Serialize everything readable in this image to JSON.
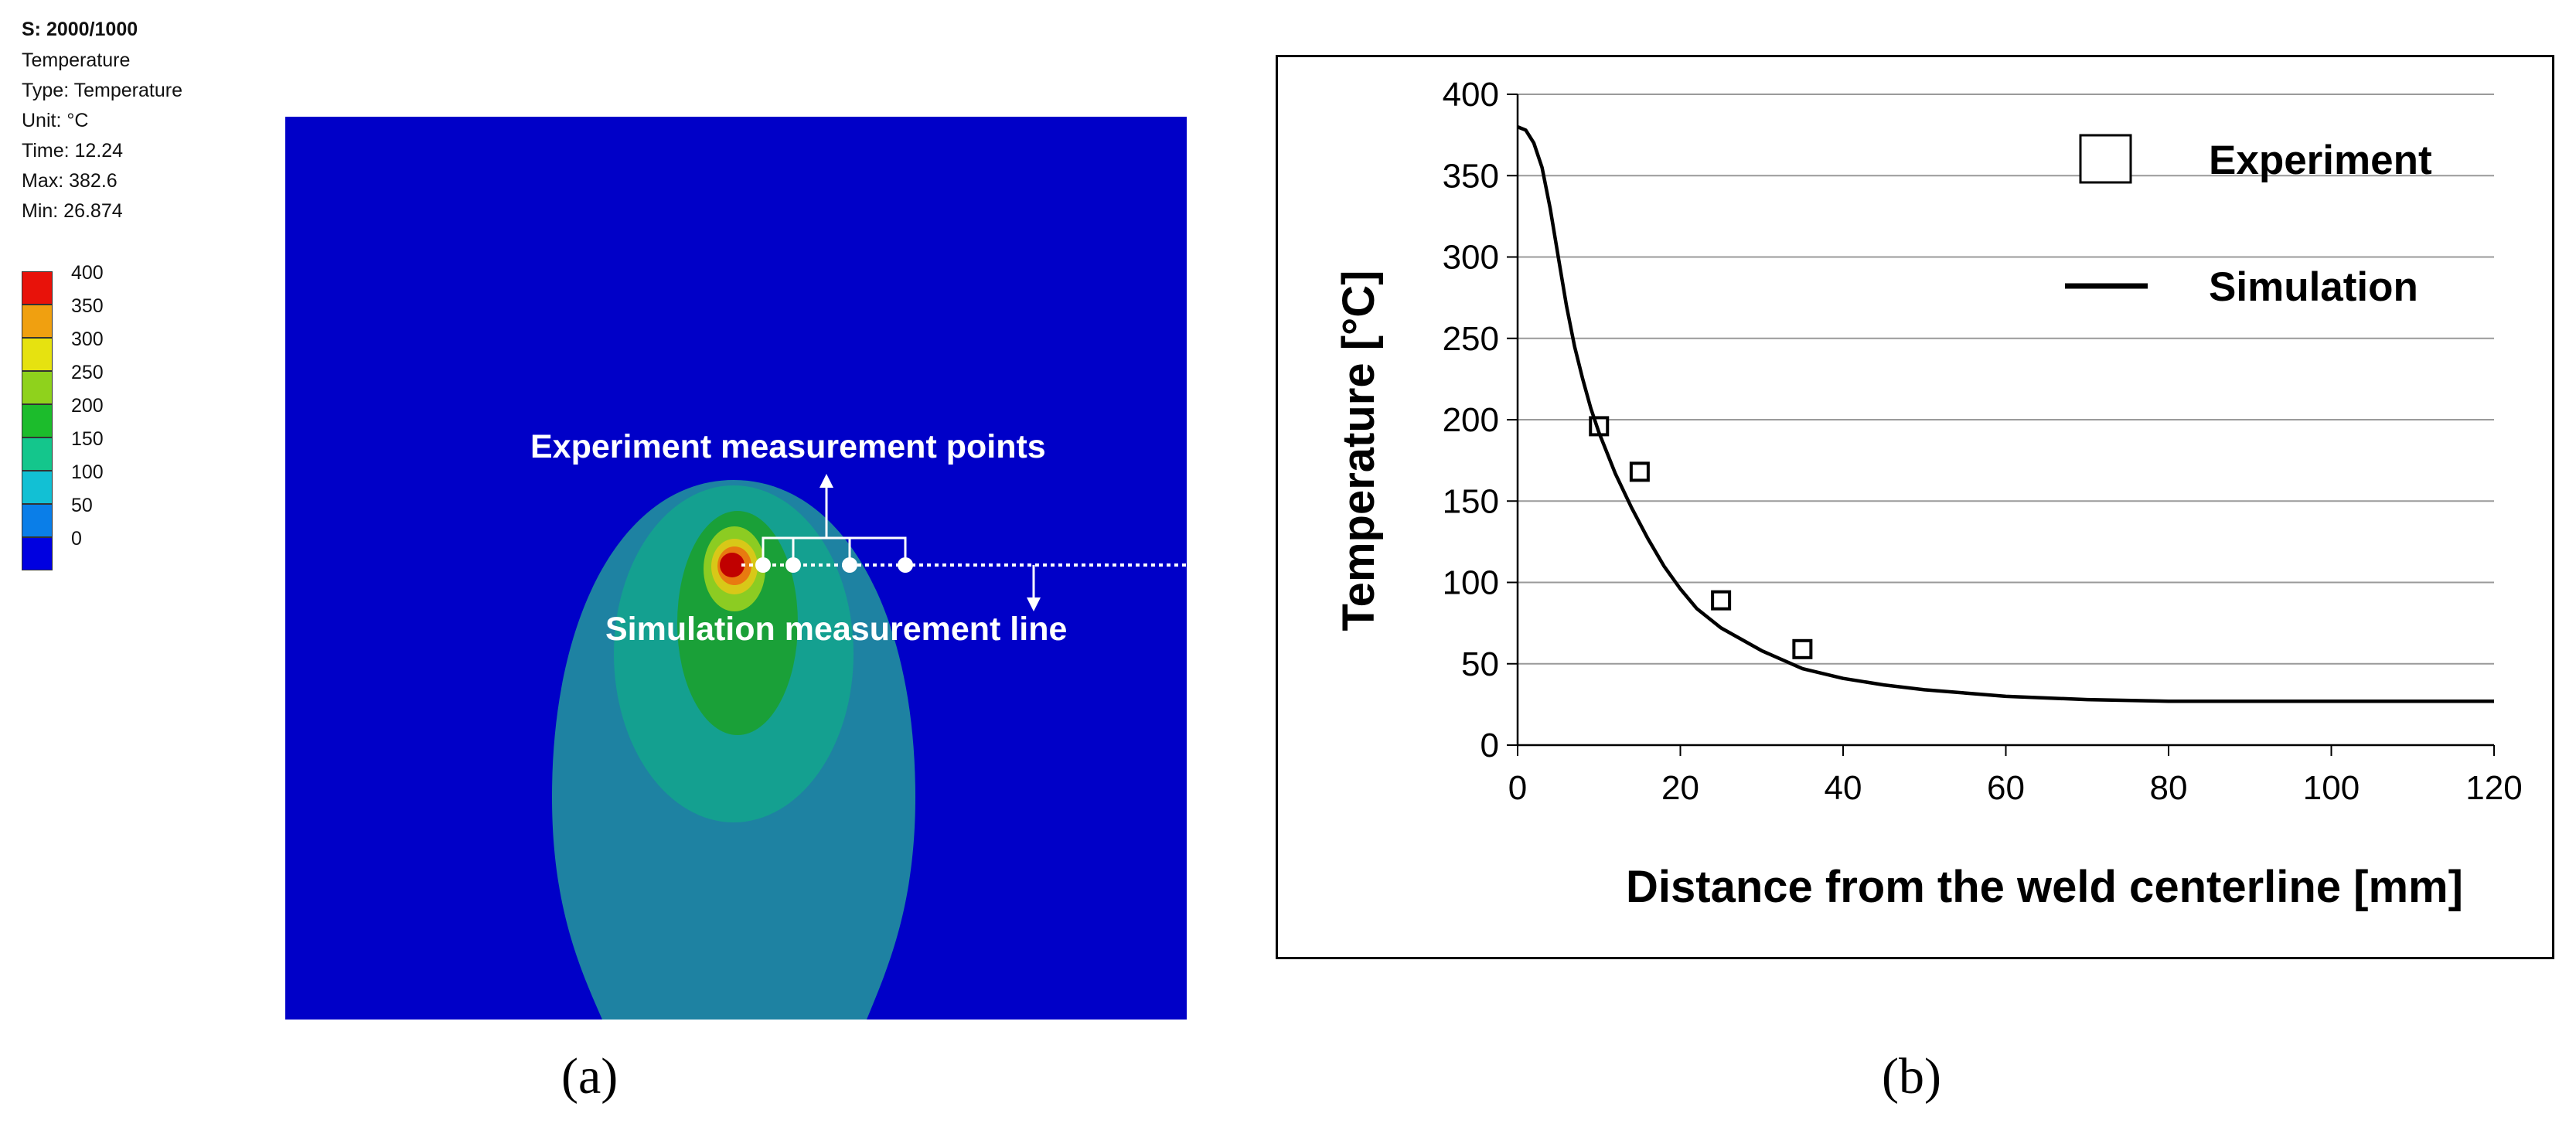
{
  "panel_a": {
    "info": {
      "step": "S: 2000/1000",
      "name": "Temperature",
      "type": "Type: Temperature",
      "unit": "Unit: °C",
      "time": "Time: 12.24",
      "max": "Max: 382.6",
      "min": "Min: 26.874"
    },
    "legend": {
      "labels": [
        "400",
        "350",
        "300",
        "250",
        "200",
        "150",
        "100",
        "50",
        "0"
      ],
      "colors": [
        "#e8120a",
        "#f0a010",
        "#e6e210",
        "#8fd21c",
        "#1cbc2c",
        "#14c68c",
        "#12c0d4",
        "#0a7ee8",
        "#0000e0"
      ]
    },
    "annotation_points": "Experiment measurement points",
    "annotation_line": "Simulation measurement line",
    "caption": "(a)",
    "colors": {
      "background": "#0000c8",
      "outer": "#1e82a2",
      "mid": "#14a090",
      "inner": "#1aa038",
      "hot": "#c00000"
    }
  },
  "panel_b": {
    "caption": "(b)"
  },
  "chart_data": {
    "type": "scatter",
    "xlabel": "Distance from the weld centerline [mm]",
    "ylabel": "Temperature [°C]",
    "xlim": [
      0,
      120
    ],
    "ylim": [
      0,
      400
    ],
    "xticks": [
      "0",
      "20",
      "40",
      "60",
      "80",
      "100",
      "120"
    ],
    "yticks": [
      "0",
      "50",
      "100",
      "150",
      "200",
      "250",
      "300",
      "350",
      "400"
    ],
    "grid": "horizontal",
    "legend_position": "top-right",
    "series": [
      {
        "name": "Experiment",
        "marker": "square",
        "x": [
          10,
          15,
          25,
          35
        ],
        "y": [
          196,
          168,
          89,
          59
        ]
      },
      {
        "name": "Simulation",
        "style": "line",
        "x": [
          0,
          1,
          2,
          3,
          4,
          5,
          6,
          7,
          8,
          9,
          10,
          12,
          14,
          16,
          18,
          20,
          22,
          25,
          30,
          35,
          40,
          45,
          50,
          55,
          60,
          70,
          80,
          90,
          100,
          110,
          120
        ],
        "y": [
          380,
          378,
          370,
          355,
          330,
          300,
          270,
          245,
          225,
          207,
          192,
          167,
          146,
          127,
          110,
          96,
          84,
          72,
          58,
          47,
          41,
          37,
          34,
          32,
          30,
          28,
          27,
          27,
          27,
          27,
          27
        ]
      }
    ]
  }
}
